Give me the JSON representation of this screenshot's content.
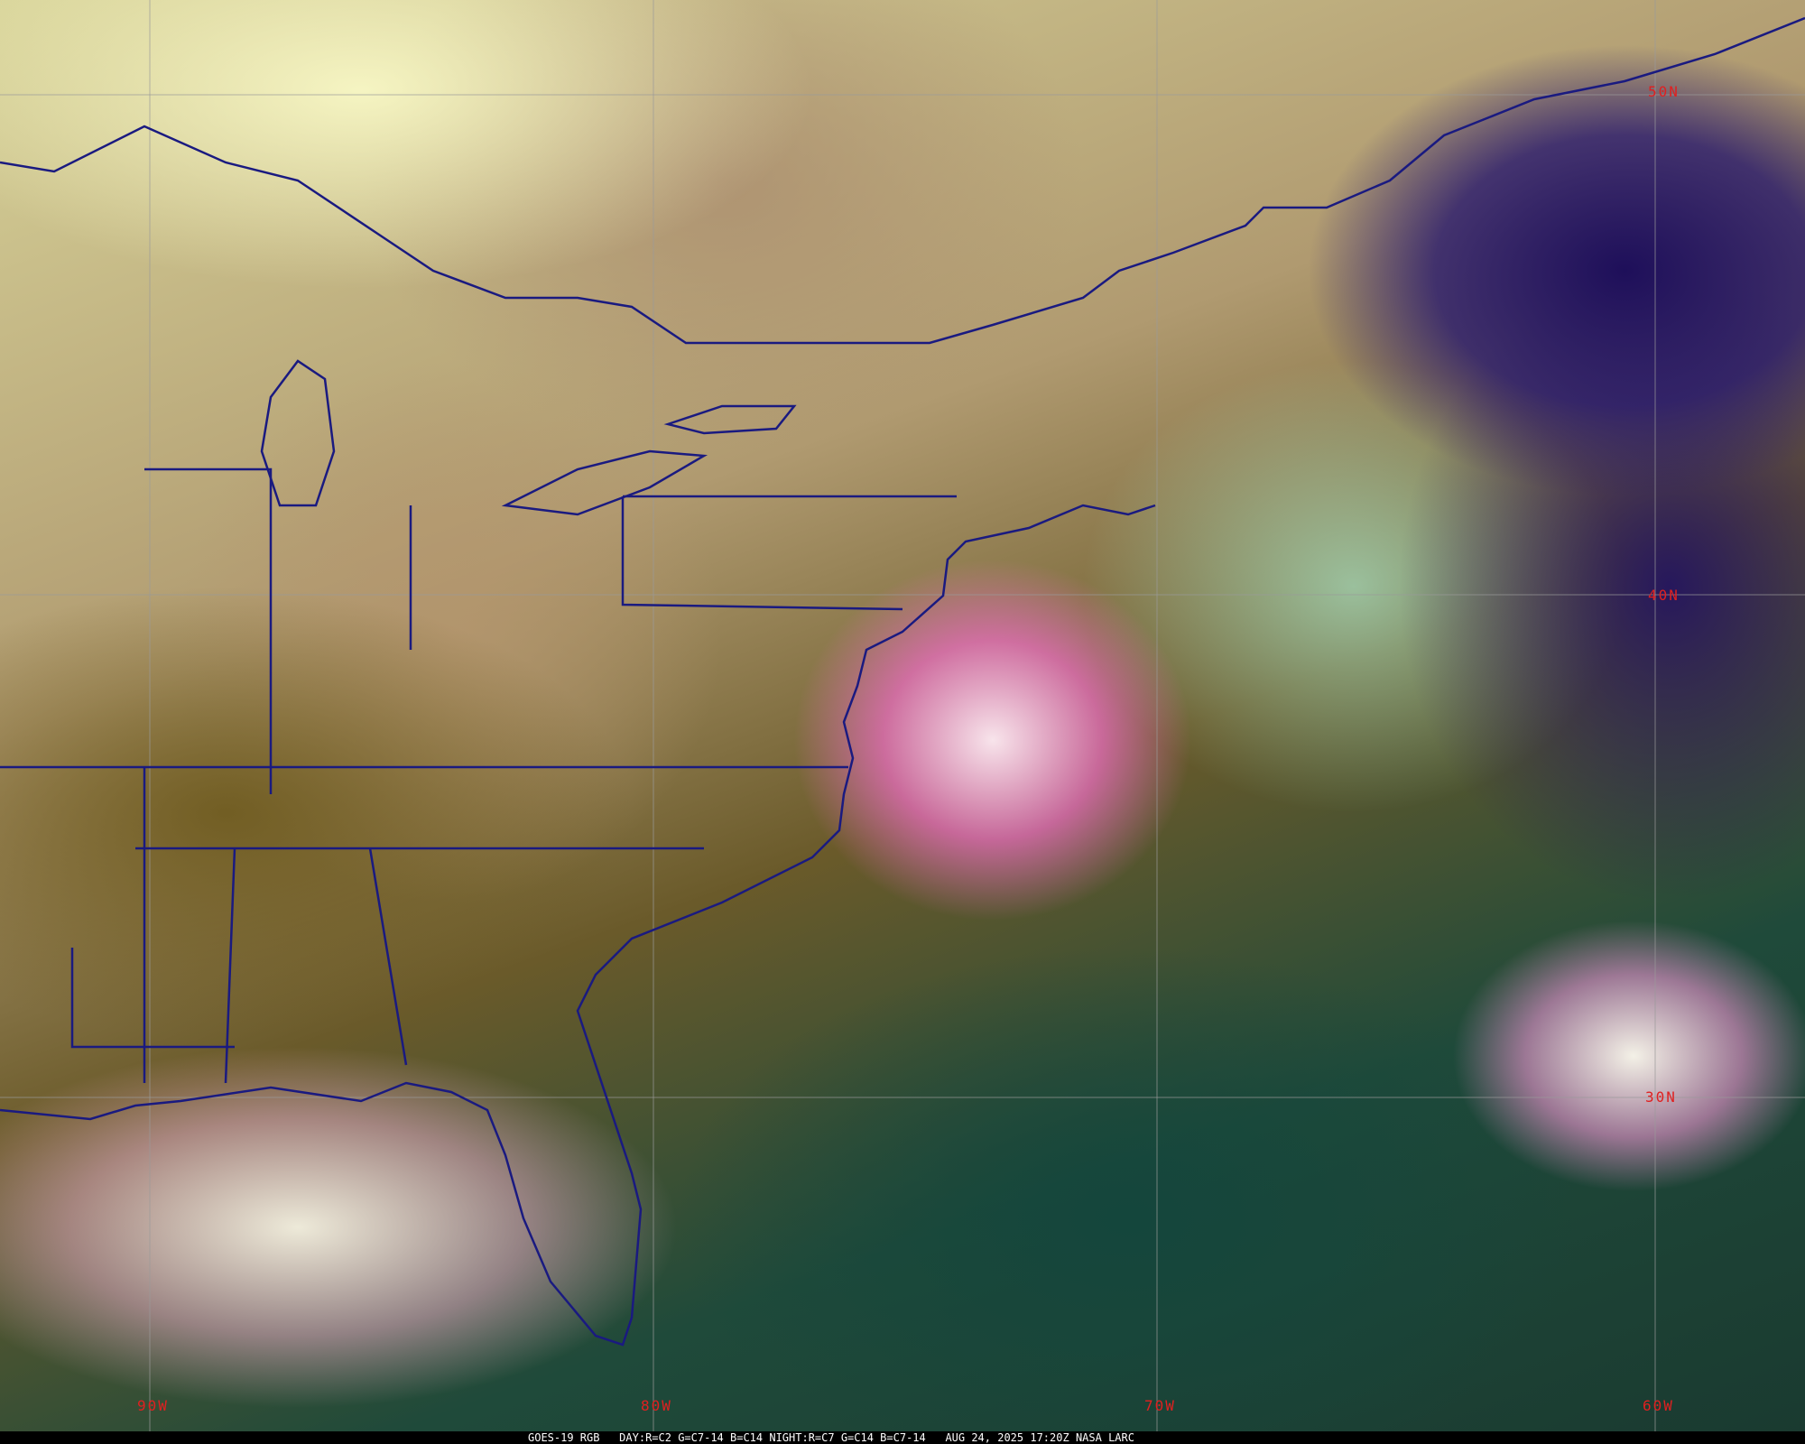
{
  "map": {
    "caption": {
      "satellite": "GOES-19 RGB",
      "day_recipe": "DAY:R=C2 G=C7-14 B=C14",
      "night_recipe": "NIGHT:R=C7 G=C14 B=C7-14",
      "datetime": "AUG 24, 2025 17:20Z",
      "source": "NASA LARC"
    },
    "latitude_labels": [
      "50N",
      "40N",
      "30N"
    ],
    "longitude_labels": [
      "90W",
      "80W",
      "70W",
      "60W"
    ],
    "colors": {
      "boundaries": "#1a1a80",
      "grid": "#9a9a9a",
      "labels": "#e02020"
    }
  }
}
